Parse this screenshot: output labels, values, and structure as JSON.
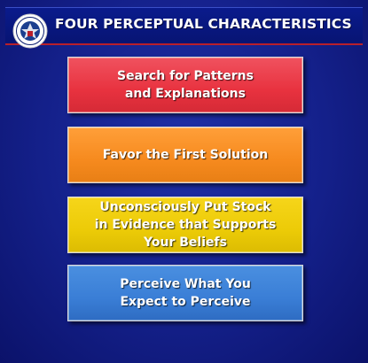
{
  "header": {
    "title": "FOUR PERCEPTUAL CHARACTERISTICS",
    "seal_icon": "dhs-seal-icon"
  },
  "boxes": [
    {
      "label": "Search for Patterns\nand Explanations",
      "color": "#e8323f"
    },
    {
      "label": "Favor the First Solution",
      "color": "#f68a1e"
    },
    {
      "label": "Unconsciously Put Stock\nin Evidence that Supports\nYour Beliefs",
      "color": "#eccb07"
    },
    {
      "label": "Perceive What You\nExpect to Perceive",
      "color": "#3a7ed6"
    }
  ],
  "theme": {
    "background": "#14208a",
    "title_rule": "#b81f2b"
  }
}
